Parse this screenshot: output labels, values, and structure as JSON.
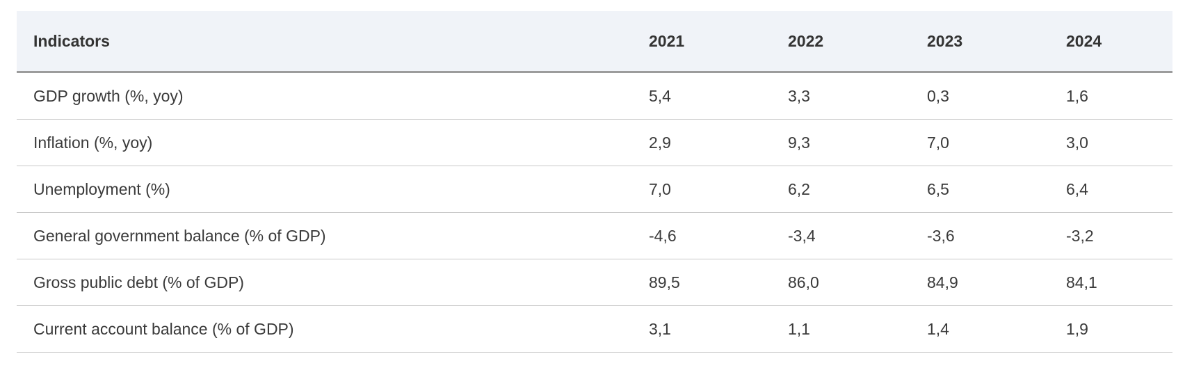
{
  "table": {
    "headers": [
      "Indicators",
      "2021",
      "2022",
      "2023",
      "2024"
    ],
    "rows": [
      {
        "indicator": "GDP growth (%, yoy)",
        "values": [
          "5,4",
          "3,3",
          "0,3",
          "1,6"
        ]
      },
      {
        "indicator": "Inflation (%, yoy)",
        "values": [
          "2,9",
          "9,3",
          "7,0",
          "3,0"
        ]
      },
      {
        "indicator": "Unemployment (%)",
        "values": [
          "7,0",
          "6,2",
          "6,5",
          "6,4"
        ]
      },
      {
        "indicator": "General government balance (% of GDP)",
        "values": [
          "-4,6",
          "-3,4",
          "-3,6",
          "-3,2"
        ]
      },
      {
        "indicator": "Gross public debt (% of GDP)",
        "values": [
          "89,5",
          "86,0",
          "84,9",
          "84,1"
        ]
      },
      {
        "indicator": "Current account balance (% of GDP)",
        "values": [
          "3,1",
          "1,1",
          "1,4",
          "1,9"
        ]
      }
    ]
  },
  "colors": {
    "header_background": "#f0f3f8",
    "header_border": "#9c9c9c",
    "row_border": "#c8c8c8",
    "text": "#3a3a3a"
  }
}
